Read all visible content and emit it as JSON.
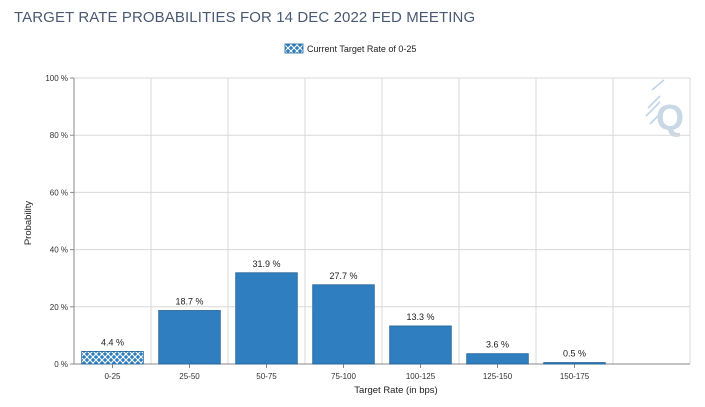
{
  "page": {
    "title": "TARGET RATE PROBABILITIES FOR 14 DEC 2022 FED MEETING"
  },
  "logo": {
    "text": "Q"
  },
  "chart_data": {
    "type": "bar",
    "title": "TARGET RATE PROBABILITIES FOR 14 DEC 2022 FED MEETING",
    "xlabel": "Target Rate (in bps)",
    "ylabel": "Probability",
    "ylim": [
      0,
      100
    ],
    "yticks": [
      0,
      20,
      40,
      60,
      80,
      100
    ],
    "ytick_labels": [
      "0 %",
      "20 %",
      "40 %",
      "60 %",
      "80 %",
      "100 %"
    ],
    "categories": [
      "0-25",
      "25-50",
      "50-75",
      "75-100",
      "100-125",
      "125-150",
      "150-175"
    ],
    "values": [
      4.4,
      18.7,
      31.9,
      27.7,
      13.3,
      3.6,
      0.5
    ],
    "value_labels": [
      "4.4 %",
      "18.7 %",
      "31.9 %",
      "27.7 %",
      "13.3 %",
      "3.6 %",
      "0.5 %"
    ],
    "highlight_index": 0,
    "legend": {
      "label": "Current Target Rate of 0-25",
      "placement": "top-center"
    },
    "grid": true,
    "colors": {
      "bar": "#2f7fc0",
      "bar_edge": "#1e5f96",
      "highlight": "#2f7fc0",
      "grid": "#d8d8d8",
      "axis": "#888888"
    }
  }
}
